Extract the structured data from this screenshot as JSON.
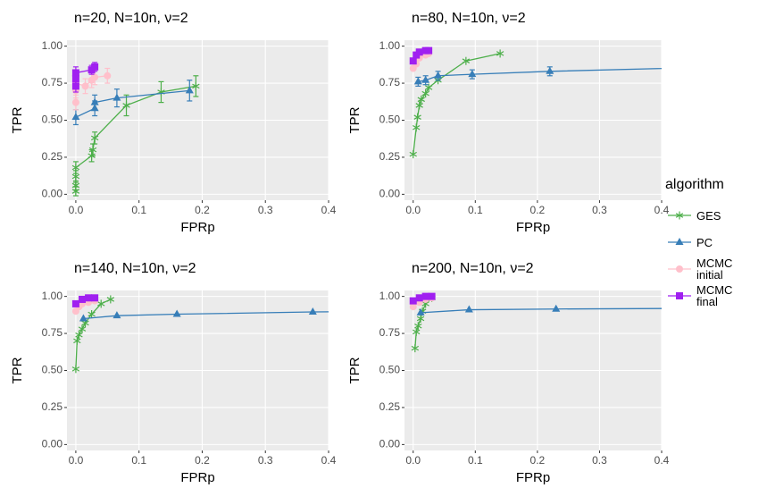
{
  "legend_title": "algorithm",
  "chart_data": [
    {
      "type": "line",
      "title": "n=20, N=10n, ν=2",
      "xlabel": "FPRp",
      "ylabel": "TPR",
      "xlim": [
        -0.014,
        0.4
      ],
      "ylim": [
        -0.04,
        1.04
      ],
      "xticks": [
        {
          "value": 0,
          "label": "0.0"
        },
        0.1,
        0.2,
        0.3,
        0.4
      ],
      "yticks": [
        {
          "value": 0,
          "label": "0.00"
        },
        0.25,
        {
          "value": 0.5,
          "label": "0.50"
        },
        0.75,
        {
          "value": 1,
          "label": "1.00"
        }
      ],
      "grid": true,
      "series": [
        {
          "name": "GES",
          "color": "#4daf4a",
          "marker": "asterisk",
          "x": [
            0,
            0,
            0,
            0,
            0.025,
            0.027,
            0.03,
            0.08,
            0.135,
            0.19
          ],
          "values": [
            0.02,
            0.06,
            0.12,
            0.18,
            0.26,
            0.3,
            0.38,
            0.6,
            0.69,
            0.73
          ],
          "errors": [
            0.03,
            0.03,
            0.04,
            0.04,
            0.04,
            0.04,
            0.04,
            0.07,
            0.07,
            0.07
          ]
        },
        {
          "name": "PC",
          "color": "#377eb8",
          "marker": "triangle",
          "x": [
            0,
            0.03,
            0.03,
            0.065,
            0.18
          ],
          "values": [
            0.52,
            0.58,
            0.62,
            0.65,
            0.7
          ],
          "errors": [
            0.05,
            0.05,
            0.05,
            0.06,
            0.07
          ]
        },
        {
          "name": "MCMC initial",
          "color": "#ffc0cb",
          "marker": "circle",
          "x": [
            0,
            0,
            0,
            0.015,
            0.025,
            0.03,
            0.05
          ],
          "values": [
            0.62,
            0.7,
            0.75,
            0.73,
            0.77,
            0.79,
            0.8
          ],
          "errors": [
            0.05,
            0.05,
            0.05,
            0.05,
            0.05,
            0.05,
            0.05
          ]
        },
        {
          "name": "MCMC final",
          "color": "#a020f0",
          "marker": "square",
          "x": [
            0,
            0,
            0,
            0.025,
            0.03
          ],
          "values": [
            0.73,
            0.78,
            0.82,
            0.84,
            0.86
          ],
          "errors": [
            0.04,
            0.04,
            0.04,
            0.03,
            0.03
          ]
        }
      ]
    },
    {
      "type": "line",
      "title": "n=80, N=10n, ν=2",
      "xlabel": "FPRp",
      "ylabel": "TPR",
      "xlim": [
        -0.014,
        0.4
      ],
      "ylim": [
        -0.04,
        1.04
      ],
      "xticks": [
        {
          "value": 0,
          "label": "0.0"
        },
        0.1,
        0.2,
        0.3,
        0.4
      ],
      "yticks": [
        {
          "value": 0,
          "label": "0.00"
        },
        0.25,
        {
          "value": 0.5,
          "label": "0.50"
        },
        0.75,
        {
          "value": 1,
          "label": "1.00"
        }
      ],
      "grid": true,
      "series": [
        {
          "name": "GES",
          "color": "#4daf4a",
          "marker": "asterisk",
          "x": [
            0,
            0.005,
            0.007,
            0.01,
            0.013,
            0.02,
            0.025,
            0.04,
            0.085,
            0.14
          ],
          "values": [
            0.27,
            0.45,
            0.52,
            0.6,
            0.64,
            0.68,
            0.72,
            0.77,
            0.9,
            0.95
          ]
        },
        {
          "name": "PC",
          "color": "#377eb8",
          "marker": "triangle",
          "x": [
            0.008,
            0.02,
            0.04,
            0.095,
            0.22,
            0.5
          ],
          "values": [
            0.76,
            0.77,
            0.8,
            0.81,
            0.83,
            0.86
          ],
          "errors": [
            0.03,
            0.03,
            0.03,
            0.03,
            0.03,
            0.03
          ]
        },
        {
          "name": "MCMC initial",
          "color": "#ffc0cb",
          "marker": "circle",
          "x": [
            0,
            0.005,
            0.01,
            0.02,
            0.025
          ],
          "values": [
            0.85,
            0.88,
            0.92,
            0.94,
            0.95
          ]
        },
        {
          "name": "MCMC final",
          "color": "#a020f0",
          "marker": "square",
          "x": [
            0,
            0.005,
            0.01,
            0.02,
            0.025
          ],
          "values": [
            0.9,
            0.94,
            0.96,
            0.97,
            0.97
          ]
        }
      ]
    },
    {
      "type": "line",
      "title": "n=140, N=10n, ν=2",
      "xlabel": "FPRp",
      "ylabel": "TPR",
      "xlim": [
        -0.014,
        0.4
      ],
      "ylim": [
        -0.04,
        1.04
      ],
      "xticks": [
        {
          "value": 0,
          "label": "0.0"
        },
        0.1,
        0.2,
        0.3,
        0.4
      ],
      "yticks": [
        {
          "value": 0,
          "label": "0.00"
        },
        0.25,
        {
          "value": 0.5,
          "label": "0.50"
        },
        0.75,
        {
          "value": 1,
          "label": "1.00"
        }
      ],
      "grid": true,
      "series": [
        {
          "name": "GES",
          "color": "#4daf4a",
          "marker": "asterisk",
          "x": [
            0,
            0.002,
            0.005,
            0.01,
            0.015,
            0.025,
            0.04,
            0.055
          ],
          "values": [
            0.51,
            0.7,
            0.74,
            0.78,
            0.82,
            0.88,
            0.95,
            0.98
          ]
        },
        {
          "name": "PC",
          "color": "#377eb8",
          "marker": "triangle",
          "x": [
            0.012,
            0.065,
            0.16,
            0.375,
            0.5
          ],
          "values": [
            0.85,
            0.87,
            0.88,
            0.895,
            0.9
          ]
        },
        {
          "name": "MCMC initial",
          "color": "#ffc0cb",
          "marker": "circle",
          "x": [
            0,
            0.005,
            0.01,
            0.02,
            0.03
          ],
          "values": [
            0.9,
            0.93,
            0.95,
            0.96,
            0.97
          ]
        },
        {
          "name": "MCMC final",
          "color": "#a020f0",
          "marker": "square",
          "x": [
            0,
            0.01,
            0.02,
            0.03
          ],
          "values": [
            0.95,
            0.98,
            0.99,
            0.99
          ]
        }
      ]
    },
    {
      "type": "line",
      "title": "n=200, N=10n, ν=2",
      "xlabel": "FPRp",
      "ylabel": "TPR",
      "xlim": [
        -0.014,
        0.4
      ],
      "ylim": [
        -0.04,
        1.04
      ],
      "xticks": [
        {
          "value": 0,
          "label": "0.0"
        },
        0.1,
        0.2,
        0.3,
        0.4
      ],
      "yticks": [
        {
          "value": 0,
          "label": "0.00"
        },
        0.25,
        {
          "value": 0.5,
          "label": "0.50"
        },
        0.75,
        {
          "value": 1,
          "label": "1.00"
        }
      ],
      "grid": true,
      "series": [
        {
          "name": "GES",
          "color": "#4daf4a",
          "marker": "asterisk",
          "x": [
            0.003,
            0.005,
            0.008,
            0.012,
            0.015,
            0.02,
            0.03
          ],
          "values": [
            0.65,
            0.76,
            0.8,
            0.85,
            0.9,
            0.95,
            0.99
          ]
        },
        {
          "name": "PC",
          "color": "#377eb8",
          "marker": "triangle",
          "x": [
            0.012,
            0.09,
            0.23,
            0.5
          ],
          "values": [
            0.89,
            0.91,
            0.915,
            0.92
          ]
        },
        {
          "name": "MCMC initial",
          "color": "#ffc0cb",
          "marker": "circle",
          "x": [
            0,
            0.01,
            0.02,
            0.03
          ],
          "values": [
            0.93,
            0.96,
            0.98,
            0.99
          ]
        },
        {
          "name": "MCMC final",
          "color": "#a020f0",
          "marker": "square",
          "x": [
            0,
            0.01,
            0.02,
            0.03
          ],
          "values": [
            0.97,
            0.99,
            1,
            1
          ]
        }
      ]
    }
  ]
}
